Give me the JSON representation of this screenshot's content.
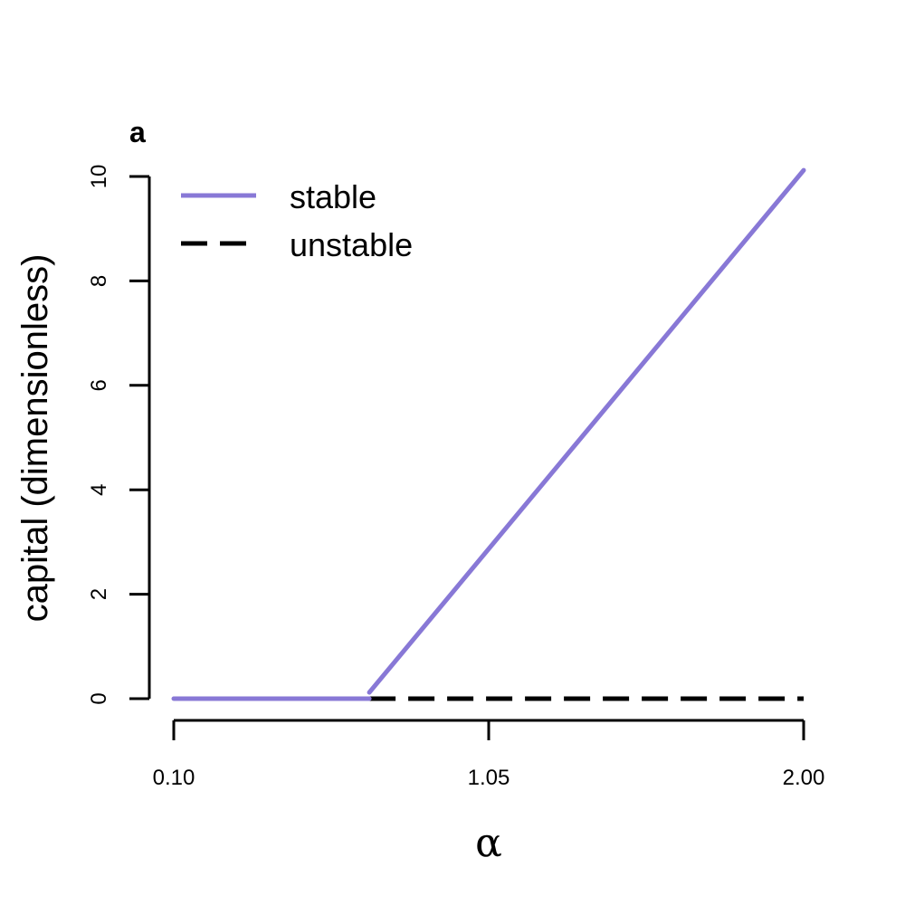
{
  "chart_data": {
    "type": "line",
    "panel_label": "a",
    "xlabel": "α",
    "ylabel": "capital (dimensionless)",
    "x_tick_labels": [
      "0.10",
      "1.05",
      "2.00"
    ],
    "x_tick_values": [
      0.1,
      1.05,
      2.0
    ],
    "xlim": [
      0.1,
      2.0
    ],
    "ylim": [
      0,
      10
    ],
    "y_ticks": [
      0,
      2,
      4,
      6,
      8,
      10
    ],
    "y_tick_labels": [
      "0",
      "2",
      "4",
      "6",
      "8",
      "10"
    ],
    "legend_position": "top-left",
    "series": [
      {
        "name": "stable",
        "color": "#8878d6",
        "style": "solid",
        "segments": [
          [
            [
              0.1,
              0.0
            ],
            [
              0.69,
              0.0
            ]
          ],
          [
            [
              0.69,
              0.12
            ],
            [
              2.0,
              10.12
            ]
          ]
        ]
      },
      {
        "name": "unstable",
        "color": "#000000",
        "style": "dashed",
        "segments": [
          [
            [
              0.69,
              0.0
            ],
            [
              2.0,
              0.0
            ]
          ]
        ]
      }
    ]
  }
}
